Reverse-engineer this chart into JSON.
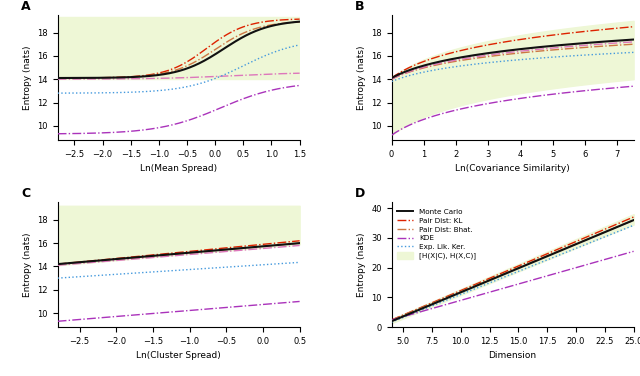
{
  "panel_labels": [
    "A",
    "B",
    "C",
    "D"
  ],
  "xlabels": [
    "Ln(Mean Spread)",
    "Ln(Covariance Similarity)",
    "Ln(Cluster Spread)",
    "Dimension"
  ],
  "ylabel": "Entropy (nats)",
  "bg_color": "#eef7d6",
  "colors": {
    "monte_carlo": "#111111",
    "pair_kl": "#dd2200",
    "pair_bhat": "#cc7744",
    "kde": "#aa33bb",
    "exp_lik": "#4499dd",
    "pink": "#dd77bb"
  },
  "legend_labels": [
    "Monte Carlo",
    "Pair Dist: KL",
    "Pair Dist: Bhat.",
    "KDE",
    "Exp. Lik. Ker.",
    "[H(X|C), H(X,C)]"
  ],
  "A_xlim": [
    -2.8,
    1.5
  ],
  "B_xlim": [
    0,
    7.5
  ],
  "C_xlim": [
    -2.8,
    0.5
  ],
  "D_xlim": [
    4,
    25
  ],
  "ABC_ylim": [
    8.8,
    19.5
  ],
  "D_ylim": [
    0,
    42
  ]
}
